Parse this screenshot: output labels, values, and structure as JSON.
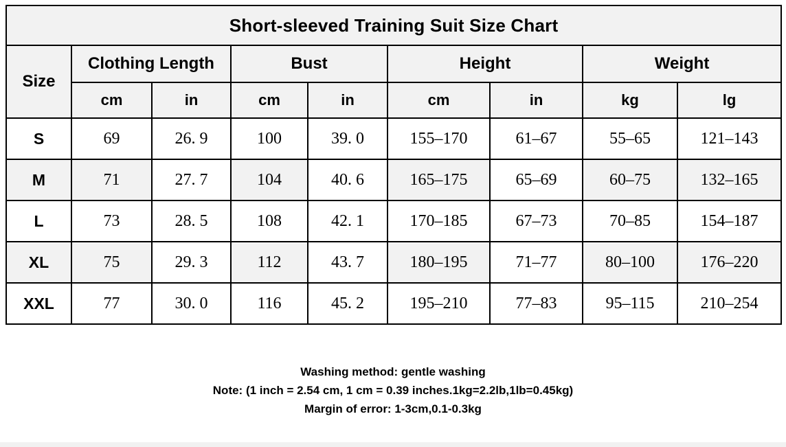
{
  "title": "Short-sleeved Training Suit Size Chart",
  "table": {
    "size_header": "Size",
    "groups": [
      {
        "label": "Clothing Length",
        "units": [
          "cm",
          "in"
        ]
      },
      {
        "label": "Bust",
        "units": [
          "cm",
          "in"
        ]
      },
      {
        "label": "Height",
        "units": [
          "cm",
          "in"
        ]
      },
      {
        "label": "Weight",
        "units": [
          "kg",
          "lg"
        ]
      }
    ],
    "rows": [
      {
        "size": "S",
        "shaded": false,
        "values": [
          "69",
          "26. 9",
          "100",
          "39. 0",
          "155–170",
          "61–67",
          "55–65",
          "121–143"
        ]
      },
      {
        "size": "M",
        "shaded": true,
        "values": [
          "71",
          "27. 7",
          "104",
          "40. 6",
          "165–175",
          "65–69",
          "60–75",
          "132–165"
        ]
      },
      {
        "size": "L",
        "shaded": false,
        "values": [
          "73",
          "28. 5",
          "108",
          "42. 1",
          "170–185",
          "67–73",
          "70–85",
          "154–187"
        ]
      },
      {
        "size": "XL",
        "shaded": true,
        "values": [
          "75",
          "29. 3",
          "112",
          "43. 7",
          "180–195",
          "71–77",
          "80–100",
          "176–220"
        ]
      },
      {
        "size": "XXL",
        "shaded": false,
        "values": [
          "77",
          "30. 0",
          "116",
          "45. 2",
          "195–210",
          "77–83",
          "95–115",
          "210–254"
        ]
      }
    ]
  },
  "notes": [
    "Washing method: gentle washing",
    "Note: (1 inch = 2.54 cm, 1 cm = 0.39 inches.1kg=2.2lb,1lb=0.45kg)",
    "Margin of error: 1-3cm,0.1-0.3kg"
  ],
  "colors": {
    "shaded_cell": "#f2f2f2",
    "border": "#000000",
    "background": "#ffffff",
    "bottom_strip": "#f1f1f1"
  }
}
